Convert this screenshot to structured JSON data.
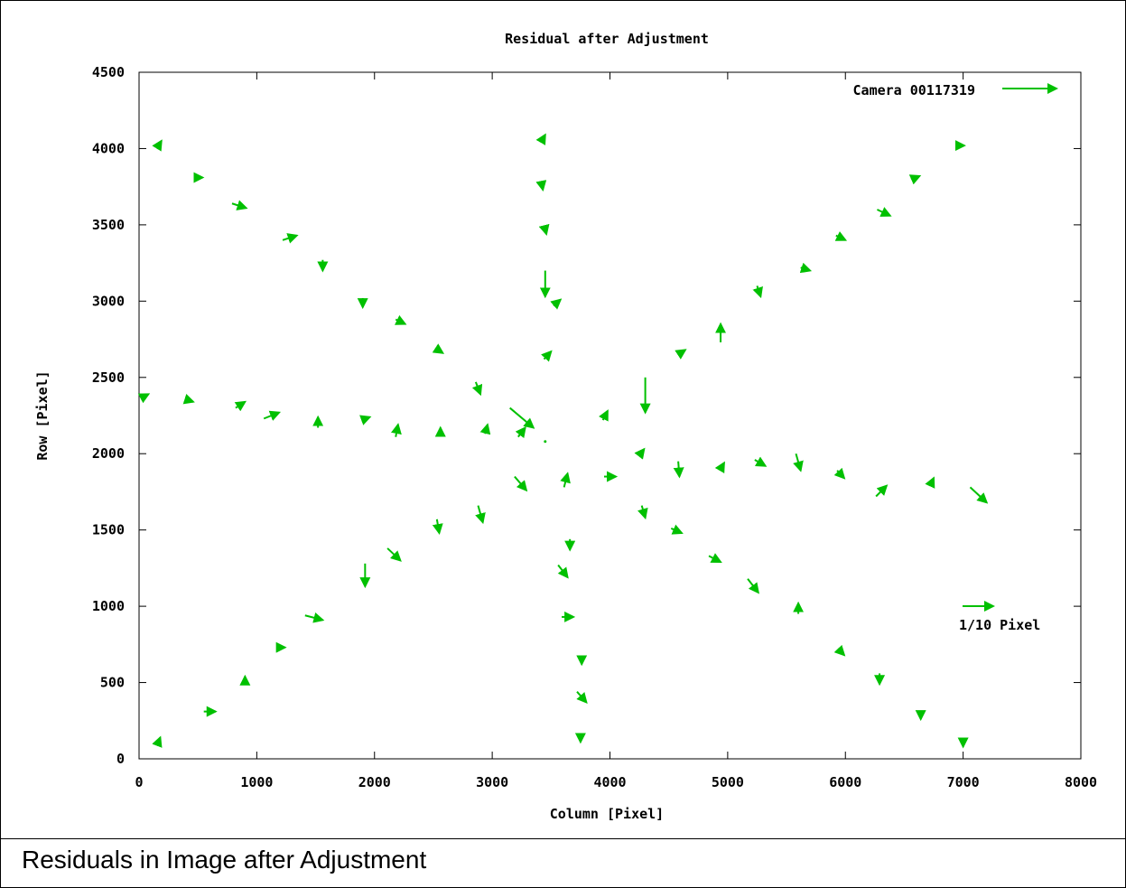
{
  "caption": "Residuals in Image after Adjustment",
  "chart_data": {
    "type": "vector_field",
    "title": "Residual after Adjustment",
    "xlabel": "Column [Pixel]",
    "ylabel": "Row [Pixel]",
    "xlim": [
      0,
      8000
    ],
    "ylim": [
      0,
      4500
    ],
    "x_ticks": [
      0,
      1000,
      2000,
      3000,
      4000,
      5000,
      6000,
      7000,
      8000
    ],
    "y_ticks": [
      0,
      500,
      1000,
      1500,
      2000,
      2500,
      3000,
      3500,
      4000,
      4500
    ],
    "legend": {
      "label": "Camera 00117319",
      "position": "top-right"
    },
    "scale_label": "1/10 Pixel",
    "color": "#00c000",
    "series": [
      {
        "name": "Camera 00117319",
        "vectors": [
          [
            150,
            4000,
            40,
            50
          ],
          [
            520,
            3810,
            20,
            0
          ],
          [
            790,
            3640,
            120,
            -30
          ],
          [
            1220,
            3400,
            120,
            30
          ],
          [
            1560,
            3270,
            0,
            -70
          ],
          [
            1900,
            3020,
            0,
            -60
          ],
          [
            2180,
            2880,
            80,
            -30
          ],
          [
            2520,
            2690,
            60,
            -30
          ],
          [
            2860,
            2470,
            40,
            -80
          ],
          [
            3150,
            2300,
            200,
            -130
          ],
          [
            3220,
            2110,
            60,
            60
          ],
          [
            3450,
            2080,
            0,
            0
          ],
          [
            3420,
            4050,
            30,
            40
          ],
          [
            3420,
            3770,
            10,
            -40
          ],
          [
            3450,
            3470,
            10,
            -30
          ],
          [
            3450,
            3200,
            0,
            -170
          ],
          [
            3520,
            2970,
            60,
            40
          ],
          [
            3440,
            2620,
            60,
            50
          ],
          [
            4300,
            2500,
            0,
            -230
          ],
          [
            3940,
            2220,
            40,
            60
          ],
          [
            4260,
            2000,
            30,
            30
          ],
          [
            4600,
            2660,
            40,
            20
          ],
          [
            4940,
            2730,
            0,
            120
          ],
          [
            5250,
            3100,
            30,
            -70
          ],
          [
            5620,
            3220,
            80,
            -20
          ],
          [
            5920,
            3430,
            80,
            -30
          ],
          [
            6270,
            3600,
            110,
            -40
          ],
          [
            6570,
            3800,
            60,
            20
          ],
          [
            6990,
            4020,
            20,
            0
          ],
          [
            30,
            2370,
            50,
            20
          ],
          [
            420,
            2350,
            40,
            -10
          ],
          [
            820,
            2300,
            80,
            40
          ],
          [
            1060,
            2230,
            130,
            40
          ],
          [
            1520,
            2170,
            0,
            70
          ],
          [
            1890,
            2220,
            70,
            20
          ],
          [
            2180,
            2110,
            20,
            80
          ],
          [
            2560,
            2140,
            0,
            30
          ],
          [
            2940,
            2130,
            20,
            60
          ],
          [
            3950,
            1850,
            100,
            0
          ],
          [
            4580,
            1950,
            10,
            -100
          ],
          [
            4940,
            1900,
            30,
            40
          ],
          [
            5230,
            1960,
            90,
            -40
          ],
          [
            5580,
            2000,
            40,
            -110
          ],
          [
            5930,
            1890,
            60,
            -50
          ],
          [
            6260,
            1720,
            90,
            70
          ],
          [
            6720,
            1790,
            30,
            50
          ],
          [
            7060,
            1780,
            140,
            -100
          ],
          [
            3190,
            1850,
            100,
            -90
          ],
          [
            3610,
            1780,
            30,
            90
          ],
          [
            2880,
            1660,
            40,
            -110
          ],
          [
            3660,
            1440,
            0,
            -70
          ],
          [
            4270,
            1660,
            30,
            -80
          ],
          [
            4520,
            1510,
            90,
            -30
          ],
          [
            4840,
            1330,
            100,
            -40
          ],
          [
            5170,
            1180,
            90,
            -90
          ],
          [
            5600,
            950,
            0,
            70
          ],
          [
            5940,
            720,
            50,
            -40
          ],
          [
            6290,
            560,
            0,
            -70
          ],
          [
            6640,
            300,
            0,
            -40
          ],
          [
            7000,
            120,
            0,
            -40
          ],
          [
            2530,
            1570,
            20,
            -90
          ],
          [
            2110,
            1380,
            110,
            -80
          ],
          [
            1920,
            1280,
            0,
            -150
          ],
          [
            1410,
            940,
            150,
            -30
          ],
          [
            1180,
            730,
            60,
            0
          ],
          [
            550,
            310,
            100,
            0
          ],
          [
            900,
            490,
            0,
            50
          ],
          [
            160,
            100,
            20,
            40
          ],
          [
            3750,
            140,
            0,
            -30
          ],
          [
            3760,
            650,
            0,
            -30
          ],
          [
            3720,
            440,
            80,
            -70
          ],
          [
            3560,
            1270,
            80,
            -80
          ],
          [
            3590,
            930,
            100,
            0
          ]
        ]
      }
    ]
  }
}
